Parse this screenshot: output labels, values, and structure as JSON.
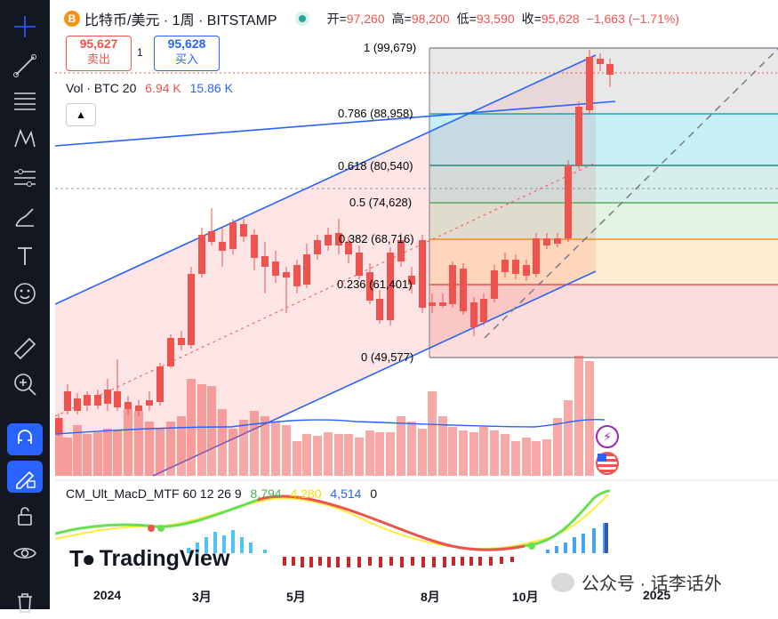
{
  "symbol": {
    "name": "比特币/美元 · 1周 · BITSTAMP",
    "open_label": "开=",
    "open": "97,260",
    "high_label": "高=",
    "high": "98,200",
    "low_label": "低=",
    "low": "93,590",
    "close_label": "收=",
    "close": "95,628",
    "change": "−1,663 (−1.71%)"
  },
  "trade": {
    "sell_price": "95,627",
    "sell_label": "卖出",
    "spread": "1",
    "buy_price": "95,628",
    "buy_label": "买入"
  },
  "volume_legend": {
    "label": "Vol · BTC 20",
    "value1": "6.94 K",
    "value2": "15.86 K"
  },
  "fib_levels": [
    {
      "label": "1 (99,679)",
      "color": "#787b86"
    },
    {
      "label": "0.786 (88,958)",
      "color": "#0097a7"
    },
    {
      "label": "0.618 (80,540)",
      "color": "#00796b"
    },
    {
      "label": "0.5 (74,628)",
      "color": "#43a047"
    },
    {
      "label": "0.382 (68,716)",
      "color": "#f57c00"
    },
    {
      "label": "0.236 (61,401)",
      "color": "#e53935"
    },
    {
      "label": "0 (49,577)",
      "color": "#787b86"
    }
  ],
  "macd_legend": {
    "label": "CM_Ult_MacD_MTF 60 12 26 9",
    "v1": "8,794",
    "v2": "4,280",
    "v3": "4,514",
    "v4": "0"
  },
  "x_axis": [
    "2024",
    "3月",
    "5月",
    "8月",
    "10月",
    "2025"
  ],
  "watermark": {
    "logo": "TradingView",
    "wechat": "公众号 · 话李话外"
  },
  "colors": {
    "up": "#26a69a",
    "down": "#ef5350",
    "channel": "#2962ff",
    "toolbar": "#131722"
  },
  "icons": [
    "crosshair-icon",
    "trend-line-icon",
    "fib-retracement-icon",
    "pattern-icon",
    "projection-icon",
    "brush-icon",
    "text-icon",
    "emoji-icon",
    "ruler-icon",
    "zoom-in-icon",
    "magnet-icon",
    "lock-drawing-icon",
    "lock-icon",
    "eye-icon",
    "trash-icon"
  ]
}
